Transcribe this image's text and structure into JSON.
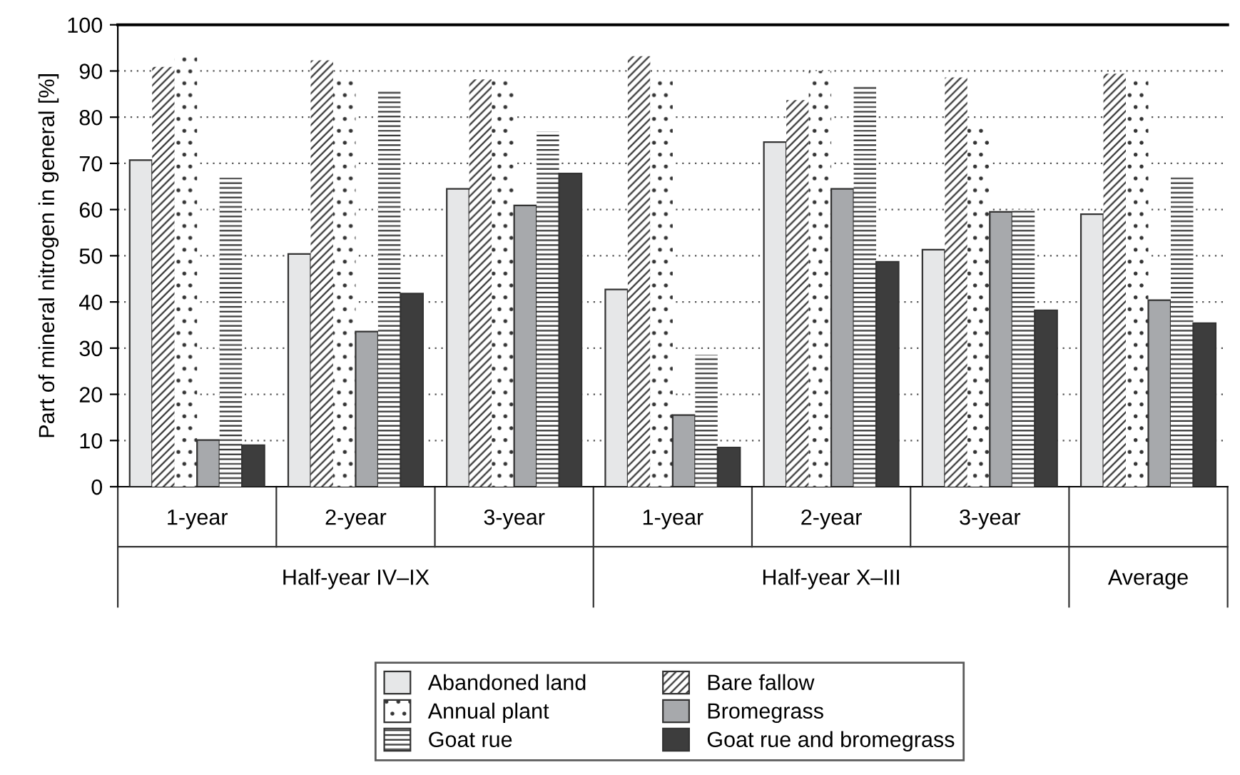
{
  "chart_data": {
    "type": "bar",
    "ylabel": "Part of mineral nitrogen in general [%]",
    "categories": [
      "1-year",
      "2-year",
      "3-year",
      "1-year",
      "2-year",
      "3-year",
      null
    ],
    "annotations": [
      "Half-year IV–IX",
      "Half-year X–III",
      "Average"
    ],
    "ylim": [
      0,
      100
    ],
    "yticks": [
      0,
      10,
      20,
      30,
      40,
      50,
      60,
      70,
      80,
      90,
      100
    ],
    "grid": "y",
    "legend": "bottom",
    "series": [
      {
        "name": "Abandoned land",
        "color": "#e6e7e8",
        "values": [
          70.7,
          50.4,
          64.5,
          42.7,
          74.6,
          51.3,
          59.0
        ]
      },
      {
        "name": "Bare fallow",
        "color": "#ffffff",
        "values": [
          90.9,
          92.3,
          88.2,
          93.2,
          83.7,
          88.6,
          89.4
        ]
      },
      {
        "name": "Annual plant",
        "color": "#ffffff",
        "values": [
          94.0,
          89.4,
          88.6,
          89.4,
          90.0,
          78.1,
          88.6
        ]
      },
      {
        "name": "Bromegrass",
        "color": "#a7a9ac",
        "values": [
          10.1,
          33.6,
          60.9,
          15.5,
          64.5,
          59.5,
          40.4
        ]
      },
      {
        "name": "Goat rue",
        "color": "#ffffff",
        "values": [
          66.9,
          85.9,
          76.9,
          28.6,
          86.8,
          60.0,
          67.3
        ]
      },
      {
        "name": "Goat rue and bromegrass",
        "color": "#3d3d3d",
        "values": [
          9.0,
          41.8,
          67.8,
          8.5,
          48.7,
          38.2,
          35.4
        ]
      }
    ]
  }
}
